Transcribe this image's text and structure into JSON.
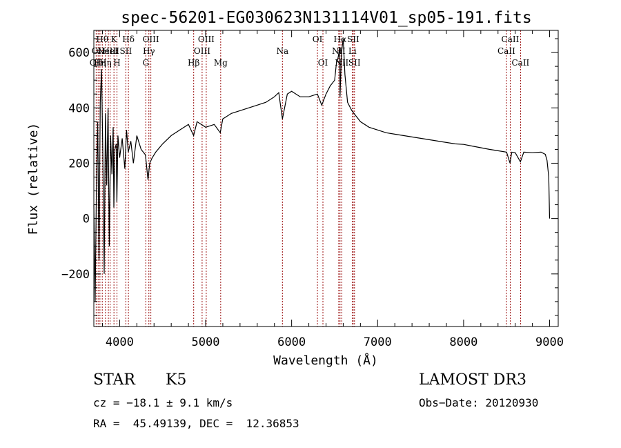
{
  "chart_data": {
    "type": "line",
    "title": "spec-56201-EG030623N131114V01_sp05-191.fits",
    "xlabel": "Wavelength (Å)",
    "ylabel": "Flux (relative)",
    "xlim": [
      3700,
      9100
    ],
    "ylim": [
      -390,
      680
    ],
    "xticks": [
      4000,
      5000,
      6000,
      7000,
      8000,
      9000
    ],
    "yticks": [
      -200,
      0,
      200,
      400,
      600
    ],
    "series": [
      {
        "name": "flux",
        "x": [
          3700,
          3715,
          3730,
          3745,
          3760,
          3775,
          3790,
          3805,
          3820,
          3835,
          3850,
          3865,
          3880,
          3895,
          3910,
          3925,
          3933,
          3945,
          3960,
          3968,
          3980,
          4000,
          4030,
          4060,
          4080,
          4100,
          4130,
          4160,
          4200,
          4250,
          4300,
          4330,
          4350,
          4380,
          4420,
          4500,
          4600,
          4700,
          4800,
          4860,
          4900,
          5000,
          5100,
          5170,
          5200,
          5300,
          5400,
          5500,
          5600,
          5700,
          5800,
          5850,
          5893,
          5950,
          6000,
          6100,
          6200,
          6300,
          6350,
          6400,
          6450,
          6500,
          6520,
          6540,
          6560,
          6563,
          6580,
          6600,
          6620,
          6650,
          6700,
          6750,
          6800,
          6900,
          7000,
          7100,
          7200,
          7300,
          7400,
          7500,
          7600,
          7700,
          7800,
          7900,
          8000,
          8100,
          8200,
          8300,
          8400,
          8500,
          8540,
          8560,
          8600,
          8660,
          8700,
          8800,
          8900,
          8950,
          8970,
          8990,
          9000
        ],
        "y": [
          50,
          -300,
          100,
          350,
          -150,
          420,
          540,
          220,
          -200,
          380,
          120,
          400,
          -100,
          300,
          160,
          330,
          40,
          250,
          270,
          60,
          300,
          220,
          290,
          180,
          320,
          240,
          280,
          200,
          300,
          250,
          230,
          140,
          200,
          220,
          240,
          270,
          300,
          320,
          340,
          300,
          350,
          330,
          340,
          310,
          360,
          380,
          390,
          400,
          410,
          420,
          440,
          455,
          360,
          450,
          460,
          440,
          440,
          450,
          410,
          450,
          480,
          500,
          560,
          580,
          620,
          440,
          600,
          650,
          520,
          420,
          390,
          370,
          350,
          330,
          320,
          310,
          305,
          300,
          295,
          290,
          285,
          280,
          275,
          270,
          268,
          262,
          256,
          250,
          245,
          240,
          200,
          240,
          238,
          205,
          240,
          238,
          240,
          232,
          210,
          150,
          0
        ]
      }
    ],
    "lines": [
      {
        "wave": 3727,
        "label": "OII",
        "row": 2
      },
      {
        "wave": 3750,
        "label": "OII",
        "row": 1
      },
      {
        "wave": 3771,
        "label": "Hη",
        "row": 2
      },
      {
        "wave": 3798,
        "label": "Hθ",
        "row": 0
      },
      {
        "wave": 3835,
        "label": "Hη",
        "row": 2
      },
      {
        "wave": 3869,
        "label": "NeIII",
        "row": 1
      },
      {
        "wave": 3889,
        "label": "HeI",
        "row": 1
      },
      {
        "wave": 3934,
        "label": "K",
        "row": 0
      },
      {
        "wave": 3969,
        "label": "H",
        "row": 2
      },
      {
        "wave": 4072,
        "label": "SII",
        "row": 1
      },
      {
        "wave": 4102,
        "label": "Hδ",
        "row": 0
      },
      {
        "wave": 4304,
        "label": "G",
        "row": 2
      },
      {
        "wave": 4340,
        "label": "Hγ",
        "row": 1
      },
      {
        "wave": 4363,
        "label": "OIII",
        "row": 0
      },
      {
        "wave": 4861,
        "label": "Hβ",
        "row": 2
      },
      {
        "wave": 4959,
        "label": "OIII",
        "row": 1
      },
      {
        "wave": 5007,
        "label": "OIII",
        "row": 0
      },
      {
        "wave": 5175,
        "label": "Mg",
        "row": 2
      },
      {
        "wave": 5893,
        "label": "Na",
        "row": 1
      },
      {
        "wave": 6300,
        "label": "OI",
        "row": 0
      },
      {
        "wave": 6364,
        "label": "OI",
        "row": 2
      },
      {
        "wave": 6548,
        "label": "NII",
        "row": 1
      },
      {
        "wave": 6563,
        "label": "Hα",
        "row": 0
      },
      {
        "wave": 6583,
        "label": "NII",
        "row": 2
      },
      {
        "wave": 6707,
        "label": "Li",
        "row": 1
      },
      {
        "wave": 6716,
        "label": "SII",
        "row": 0
      },
      {
        "wave": 6731,
        "label": "SII",
        "row": 2
      },
      {
        "wave": 8498,
        "label": "CaII",
        "row": 1
      },
      {
        "wave": 8542,
        "label": "CaII",
        "row": 0
      },
      {
        "wave": 8662,
        "label": "CaII",
        "row": 2
      }
    ]
  },
  "info": {
    "object_class": "STAR",
    "subclass": "K5",
    "survey": "LAMOST DR3",
    "cz": "cz = −18.1 ± 9.1 km/s",
    "obs_date": "Obs−Date: 20120930",
    "coords": "RA =  45.49139, DEC =  12.36853"
  },
  "colors": {
    "line_marker": "#9b1010",
    "spectrum": "#000000",
    "axes": "#000000"
  }
}
